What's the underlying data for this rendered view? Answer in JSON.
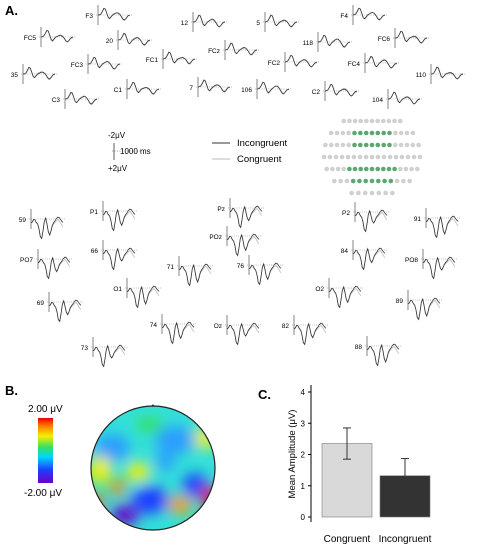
{
  "panels": {
    "a": "A.",
    "b": "B.",
    "c": "C."
  },
  "panel_a": {
    "scale": {
      "y_top": "-2μV",
      "y_bottom": "+2μV",
      "x": "1000 ms"
    },
    "legend": [
      {
        "label": "Incongruent",
        "color": "#333333"
      },
      {
        "label": "Congruent",
        "color": "#bbbbbb"
      }
    ],
    "electrode_map": {
      "active_color": "#5aa870",
      "inactive_color": "#d0d0d0"
    },
    "frontal_labels": [
      "F3",
      "12",
      "5",
      "F4",
      "FC5",
      "20",
      "118",
      "FC6",
      "FCz",
      "FC1",
      "FC2",
      "FC4",
      "35",
      "FC3",
      "110",
      "7",
      "106",
      "C2",
      "C3",
      "C1",
      "104"
    ],
    "posterior_labels": [
      "59",
      "P1",
      "Pz",
      "P2",
      "91",
      "POz",
      "PO7",
      "66",
      "71",
      "76",
      "84",
      "PO8",
      "O1",
      "O2",
      "69",
      "Oz",
      "89",
      "74",
      "82",
      "73",
      "88"
    ]
  },
  "panel_b": {
    "colorbar": {
      "max_label": "2.00 μV",
      "min_label": "-2.00 μV"
    }
  },
  "chart_data": {
    "type": "bar",
    "categories": [
      "Congruent",
      "Incongruent"
    ],
    "values": [
      2.35,
      1.32
    ],
    "errors": [
      0.5,
      0.55
    ],
    "colors": [
      "#d9d9d9",
      "#333333"
    ],
    "ylabel": "Mean Amplitude (μV)",
    "ylim": [
      0,
      4
    ],
    "yticks": [
      "0",
      "1",
      "2",
      "3",
      "4"
    ]
  }
}
